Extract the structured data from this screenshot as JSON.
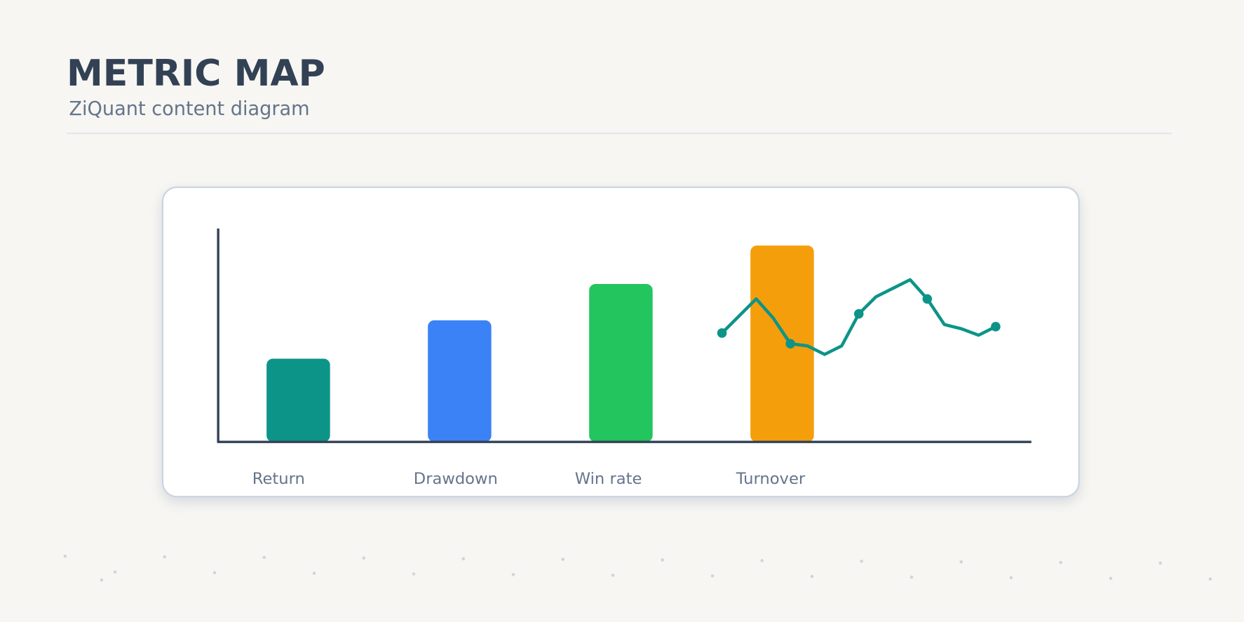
{
  "chart_data": {
    "type": "bar",
    "title": "METRIC MAP",
    "subtitle": "ZiQuant content diagram",
    "categories": [
      "Return",
      "Drawdown",
      "Win rate",
      "Turnover"
    ],
    "values": [
      39,
      57,
      74,
      92
    ],
    "colors": [
      "#0d9488",
      "#3b82f6",
      "#22c55e",
      "#f59e0b"
    ],
    "ylim": [
      0,
      100
    ],
    "overlay": {
      "type": "line",
      "color": "#0d9488",
      "values": [
        51,
        59,
        67,
        58,
        46,
        45,
        41,
        45,
        60,
        68,
        72,
        76,
        67,
        55,
        53,
        50,
        54
      ]
    }
  }
}
